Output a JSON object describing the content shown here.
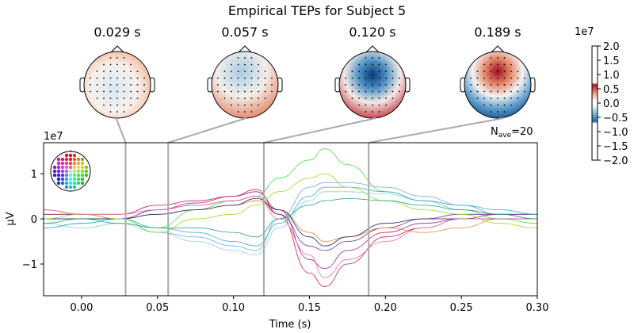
{
  "chart_data": {
    "type": "line",
    "title": "Empirical TEPs for Subject 5",
    "xlabel": "Time (s)",
    "ylabel": "µV",
    "y_scale_label": "1e7",
    "xlim": [
      -0.025,
      0.3
    ],
    "ylim": [
      -1.7,
      1.7
    ],
    "xticks": [
      0.0,
      0.05,
      0.1,
      0.15,
      0.2,
      0.25,
      0.3
    ],
    "xtick_labels": [
      "0.00",
      "0.05",
      "0.10",
      "0.15",
      "0.20",
      "0.25",
      "0.30"
    ],
    "yticks": [
      -1,
      0,
      1
    ],
    "ytick_labels": [
      "−1",
      "0",
      "1"
    ],
    "nave_label": "N",
    "nave_sub": "ave",
    "nave_value": "=20",
    "topomap_times": [
      0.029,
      0.057,
      0.12,
      0.189
    ],
    "topomap_titles": [
      "0.029 s",
      "0.057 s",
      "0.120 s",
      "0.189 s"
    ],
    "colorbar": {
      "scale_label": "1e7",
      "ticks": [
        2.0,
        1.5,
        1.0,
        0.5,
        0.0,
        -0.5,
        -1.0,
        -1.5,
        -2.0
      ],
      "tick_labels": [
        "2.0",
        "1.5",
        "1.0",
        "0.5",
        "0.0",
        "−0.5",
        "−1.0",
        "−1.5",
        "−2.0"
      ],
      "colormap": "RdBu_r"
    },
    "x": [
      -0.025,
      0,
      0.025,
      0.05,
      0.075,
      0.1,
      0.115,
      0.13,
      0.15,
      0.16,
      0.175,
      0.2,
      0.225,
      0.25,
      0.275,
      0.3
    ],
    "series": [
      {
        "color": "#44e03a",
        "values": [
          0.1,
          0.1,
          0,
          -0.2,
          0.2,
          0.4,
          0.5,
          0.9,
          1.3,
          1.55,
          1.2,
          0.6,
          0.4,
          0.2,
          0,
          -0.1
        ]
      },
      {
        "color": "#6ea8f0",
        "values": [
          -0.2,
          -0.1,
          0,
          -0.3,
          -0.4,
          -0.6,
          -0.7,
          0,
          0.7,
          0.8,
          0.8,
          0.7,
          0.5,
          0.3,
          0.1,
          0
        ]
      },
      {
        "color": "#d0204a",
        "values": [
          0.2,
          0.1,
          0.1,
          0.3,
          0.4,
          0.5,
          0.65,
          0.1,
          -1.2,
          -1.5,
          -1.0,
          -0.4,
          -0.2,
          0,
          0,
          0
        ]
      },
      {
        "color": "#b0207a",
        "values": [
          0.1,
          0.1,
          0,
          0.2,
          0.35,
          0.5,
          0.6,
          0.2,
          -0.9,
          -1.1,
          -0.7,
          -0.3,
          -0.1,
          0,
          0.1,
          0.1
        ]
      },
      {
        "color": "#90c8f0",
        "values": [
          -0.1,
          -0.2,
          -0.1,
          -0.3,
          -0.5,
          -0.7,
          -0.8,
          -0.2,
          0.4,
          0.6,
          0.6,
          0.55,
          0.4,
          0.2,
          0.1,
          0
        ]
      },
      {
        "color": "#7030a0",
        "values": [
          0,
          0,
          0,
          0.2,
          0.3,
          0.4,
          0.5,
          0.1,
          -0.6,
          -0.7,
          -0.5,
          -0.2,
          0,
          0.1,
          0.1,
          0.1
        ]
      },
      {
        "color": "#f08030",
        "values": [
          0.2,
          0.1,
          0,
          0.1,
          0.2,
          0.3,
          0.4,
          0.2,
          -0.3,
          -0.5,
          -0.4,
          -0.2,
          -0.3,
          -0.2,
          0,
          0
        ]
      },
      {
        "color": "#30b0c0",
        "values": [
          -0.2,
          -0.1,
          0,
          -0.2,
          -0.3,
          -0.5,
          -0.6,
          -0.1,
          0.5,
          0.7,
          0.7,
          0.6,
          0.4,
          0.3,
          0.2,
          0.1
        ]
      },
      {
        "color": "#202870",
        "values": [
          0,
          0,
          0,
          0.1,
          0.2,
          0.3,
          0.45,
          0.2,
          -0.4,
          -0.6,
          -0.4,
          -0.1,
          0,
          0,
          0,
          0
        ]
      },
      {
        "color": "#90e020",
        "values": [
          0,
          0.1,
          0,
          -0.3,
          0,
          0.1,
          0.3,
          0.6,
          0.9,
          1.0,
          0.7,
          0.4,
          0.2,
          0.1,
          -0.1,
          -0.2
        ]
      },
      {
        "color": "#e870a0",
        "values": [
          0.2,
          0.1,
          0.1,
          0.2,
          0.3,
          0.4,
          0.5,
          0,
          -0.8,
          -1.3,
          -0.9,
          -0.5,
          -0.2,
          0,
          0,
          0
        ]
      },
      {
        "color": "#20a080",
        "values": [
          -0.1,
          0,
          -0.1,
          -0.2,
          -0.2,
          -0.3,
          -0.4,
          0,
          0.3,
          0.4,
          0.45,
          0.4,
          0.3,
          0.2,
          0.1,
          0
        ]
      }
    ]
  }
}
